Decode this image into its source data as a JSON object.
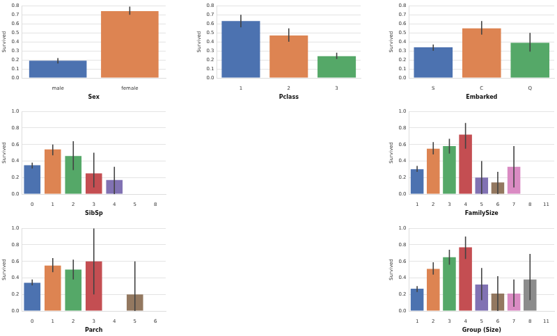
{
  "chart_data": [
    {
      "type": "bar",
      "x_label": "Sex",
      "y_label": "Survived",
      "categories": [
        "male",
        "female"
      ],
      "values": [
        0.19,
        0.74
      ],
      "ci": [
        [
          0.16,
          0.22
        ],
        [
          0.7,
          0.79
        ]
      ],
      "colors": [
        "#4c72b0",
        "#dd8452"
      ],
      "ylim": [
        0,
        0.8
      ],
      "yticks": [
        {
          "value": 0,
          "label": "0.0"
        },
        0.1,
        0.2,
        0.3,
        0.4,
        0.5,
        0.6,
        0.7,
        0.8
      ],
      "grid": true
    },
    {
      "type": "bar",
      "x_label": "Pclass",
      "y_label": "Survived",
      "categories": [
        "1",
        "2",
        "3"
      ],
      "values": [
        0.63,
        0.47,
        0.24
      ],
      "ci": [
        [
          0.56,
          0.7
        ],
        [
          0.4,
          0.55
        ],
        [
          0.21,
          0.28
        ]
      ],
      "colors": [
        "#4c72b0",
        "#dd8452",
        "#55a868"
      ],
      "ylim": [
        0,
        0.8
      ],
      "yticks": [
        {
          "value": 0,
          "label": "0.0"
        },
        0.1,
        0.2,
        0.3,
        0.4,
        0.5,
        0.6,
        0.7,
        0.8
      ],
      "grid": true
    },
    {
      "type": "bar",
      "x_label": "Embarked",
      "y_label": "Survived",
      "categories": [
        "S",
        "C",
        "Q"
      ],
      "values": [
        0.34,
        0.55,
        0.39
      ],
      "ci": [
        [
          0.3,
          0.37
        ],
        [
          0.48,
          0.63
        ],
        [
          0.29,
          0.5
        ]
      ],
      "colors": [
        "#4c72b0",
        "#dd8452",
        "#55a868"
      ],
      "ylim": [
        0,
        0.8
      ],
      "yticks": [
        {
          "value": 0,
          "label": "0.0"
        },
        0.1,
        0.2,
        0.3,
        0.4,
        0.5,
        0.6,
        0.7,
        0.8
      ],
      "grid": true
    },
    {
      "type": "bar",
      "x_label": "SibSp",
      "y_label": "Survived",
      "categories": [
        "0",
        "1",
        "2",
        "3",
        "4",
        "5",
        "8"
      ],
      "values": [
        0.35,
        0.54,
        0.46,
        0.25,
        0.17,
        0,
        0
      ],
      "ci": [
        [
          0.31,
          0.38
        ],
        [
          0.47,
          0.6
        ],
        [
          0.29,
          0.64
        ],
        [
          0.08,
          0.5
        ],
        [
          0,
          0.33
        ],
        [
          0,
          0
        ],
        [
          0,
          0
        ]
      ],
      "colors": [
        "#4c72b0",
        "#dd8452",
        "#55a868",
        "#c44e52",
        "#8172b3",
        "#937860",
        "#da8bc3"
      ],
      "ylim": [
        0,
        1
      ],
      "yticks": [
        {
          "value": 0,
          "label": "0.0"
        },
        0.2,
        0.4,
        0.6,
        0.8,
        {
          "value": 1,
          "label": "1.0"
        }
      ],
      "grid": true
    },
    {
      "type": "bar",
      "x_label": "FamilySize",
      "y_label": "Survived",
      "categories": [
        "1",
        "2",
        "3",
        "4",
        "5",
        "6",
        "7",
        "8",
        "11"
      ],
      "values": [
        0.3,
        0.55,
        0.58,
        0.72,
        0.2,
        0.14,
        0.33,
        0,
        0
      ],
      "ci": [
        [
          0.27,
          0.34
        ],
        [
          0.48,
          0.63
        ],
        [
          0.49,
          0.67
        ],
        [
          0.55,
          0.86
        ],
        [
          0,
          0.4
        ],
        [
          0,
          0.27
        ],
        [
          0.08,
          0.58
        ],
        [
          0,
          0
        ],
        [
          0,
          0
        ]
      ],
      "colors": [
        "#4c72b0",
        "#dd8452",
        "#55a868",
        "#c44e52",
        "#8172b3",
        "#937860",
        "#da8bc3",
        "#8c8c8c",
        "#ccb974"
      ],
      "ylim": [
        0,
        1
      ],
      "yticks": [
        {
          "value": 0,
          "label": "0.0"
        },
        0.2,
        0.4,
        0.6,
        0.8,
        {
          "value": 1,
          "label": "1.0"
        }
      ],
      "grid": true
    },
    {
      "type": "bar",
      "x_label": "Parch",
      "y_label": "Survived",
      "categories": [
        "0",
        "1",
        "2",
        "3",
        "4",
        "5",
        "6"
      ],
      "values": [
        0.34,
        0.55,
        0.5,
        0.6,
        0,
        0.2,
        0
      ],
      "ci": [
        [
          0.31,
          0.38
        ],
        [
          0.47,
          0.64
        ],
        [
          0.38,
          0.62
        ],
        [
          0.2,
          1.0
        ],
        [
          0,
          0
        ],
        [
          0,
          0.6
        ],
        [
          0,
          0
        ]
      ],
      "colors": [
        "#4c72b0",
        "#dd8452",
        "#55a868",
        "#c44e52",
        "#8172b3",
        "#937860",
        "#da8bc3"
      ],
      "ylim": [
        0,
        1
      ],
      "yticks": [
        {
          "value": 0,
          "label": "0.0"
        },
        0.2,
        0.4,
        0.6,
        0.8,
        {
          "value": 1,
          "label": "1.0"
        }
      ],
      "grid": true
    },
    {
      "type": "bar",
      "x_label": "Group (Size)",
      "y_label": "Survived",
      "categories": [
        "1",
        "2",
        "3",
        "4",
        "5",
        "6",
        "7",
        "8",
        "11"
      ],
      "values": [
        0.27,
        0.51,
        0.65,
        0.77,
        0.32,
        0.21,
        0.21,
        0.38,
        0
      ],
      "ci": [
        [
          0.23,
          0.3
        ],
        [
          0.44,
          0.59
        ],
        [
          0.56,
          0.74
        ],
        [
          0.63,
          0.9
        ],
        [
          0.13,
          0.52
        ],
        [
          0,
          0.42
        ],
        [
          0.05,
          0.38
        ],
        [
          0.13,
          0.69
        ],
        [
          0,
          0
        ]
      ],
      "colors": [
        "#4c72b0",
        "#dd8452",
        "#55a868",
        "#c44e52",
        "#8172b3",
        "#937860",
        "#da8bc3",
        "#8c8c8c",
        "#ccb974"
      ],
      "ylim": [
        0,
        1
      ],
      "yticks": [
        {
          "value": 0,
          "label": "0.0"
        },
        0.2,
        0.4,
        0.6,
        0.8,
        {
          "value": 1,
          "label": "1.0"
        }
      ],
      "grid": true
    }
  ]
}
